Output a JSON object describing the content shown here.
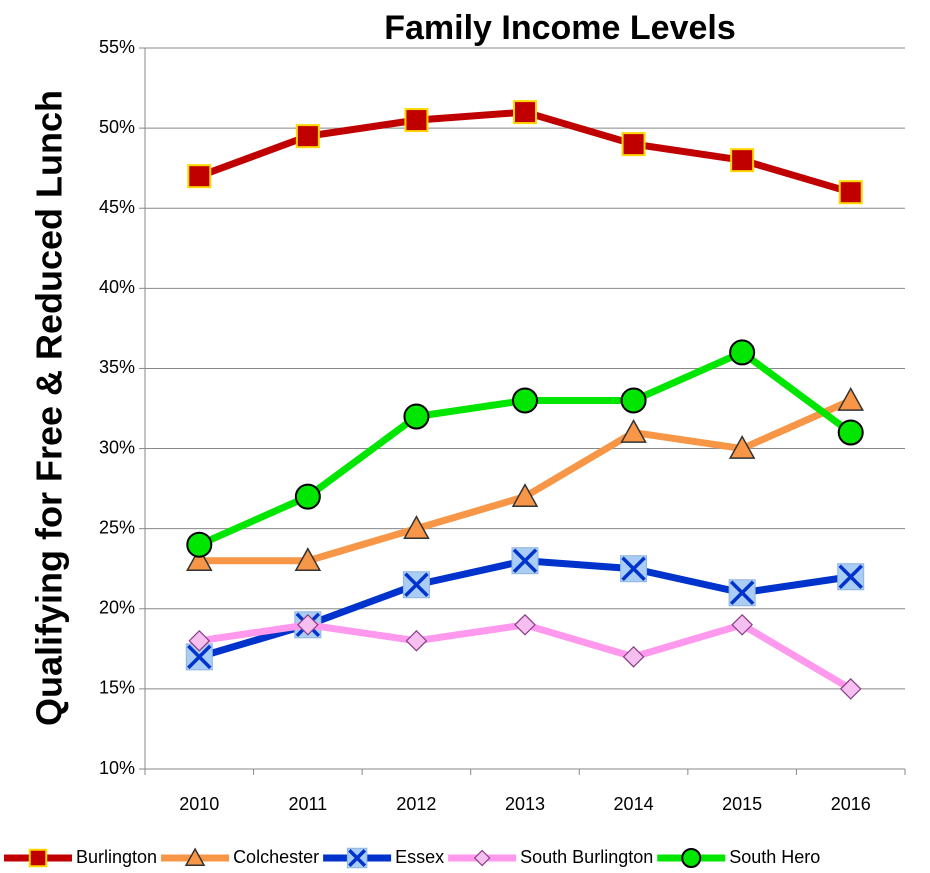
{
  "chart_data": {
    "type": "line",
    "title": "Family Income Levels",
    "y_label": "Qualifying for Free & Reduced Lunch",
    "categories": [
      "2010",
      "2011",
      "2012",
      "2013",
      "2014",
      "2015",
      "2016"
    ],
    "series": [
      {
        "name": "Burlington",
        "color": "#c00000",
        "marker": "square",
        "values": [
          47,
          49.5,
          50.5,
          51,
          49,
          48,
          46
        ]
      },
      {
        "name": "Colchester",
        "color": "#f79646",
        "marker": "triangle",
        "values": [
          23,
          23,
          25,
          27,
          31,
          30,
          33
        ]
      },
      {
        "name": "Essex",
        "color": "#0033cc",
        "marker": "x",
        "values": [
          17,
          19,
          21.5,
          23,
          22.5,
          21,
          22
        ]
      },
      {
        "name": "South Burlington",
        "color": "#ff99ee",
        "marker": "diamond",
        "values": [
          18,
          19,
          18,
          19,
          17,
          19,
          15
        ]
      },
      {
        "name": "South Hero",
        "color": "#00e600",
        "marker": "circle",
        "values": [
          24,
          27,
          32,
          33,
          33,
          36,
          31
        ]
      }
    ],
    "ylim": [
      10,
      55
    ],
    "yticks": [
      {
        "value": 10,
        "label": "10%"
      },
      {
        "value": 15,
        "label": "15%"
      },
      {
        "value": 20,
        "label": "20%"
      },
      {
        "value": 25,
        "label": "25%"
      },
      {
        "value": 30,
        "label": "30%"
      },
      {
        "value": 35,
        "label": "35%"
      },
      {
        "value": 40,
        "label": "40%"
      },
      {
        "value": 45,
        "label": "45%"
      },
      {
        "value": 50,
        "label": "50%"
      },
      {
        "value": 55,
        "label": "55%"
      }
    ],
    "grid": true,
    "legend": "bottom"
  }
}
